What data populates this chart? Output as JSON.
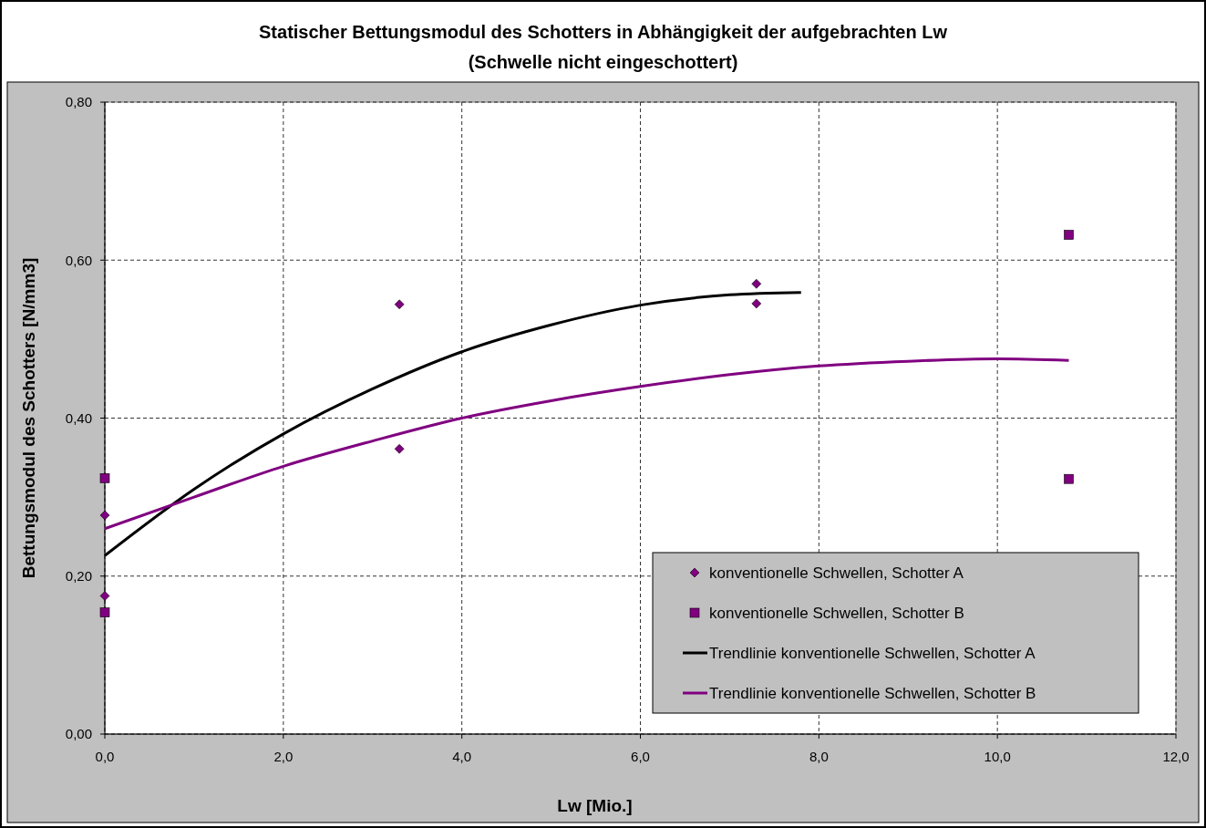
{
  "chart_data": {
    "type": "scatter",
    "title": "Statischer Bettungsmodul des Schotters in Abhängigkeit der aufgebrachten Lw",
    "subtitle": "(Schwelle nicht eingeschottert)",
    "xlabel": "Lw  [Mio.]",
    "ylabel": "Bettungsmodul des Schotters [N/mm3]",
    "xlim": [
      0,
      12
    ],
    "xticks": [
      {
        "value": 0,
        "label": "0,0"
      },
      {
        "value": 2,
        "label": "2,0"
      },
      {
        "value": 4,
        "label": "4,0"
      },
      {
        "value": 6,
        "label": "6,0"
      },
      {
        "value": 8,
        "label": "8,0"
      },
      {
        "value": 10,
        "label": "10,0"
      },
      {
        "value": 12,
        "label": "12,0"
      }
    ],
    "ylim": [
      0,
      0.8
    ],
    "yticks": [
      {
        "value": 0,
        "label": "0,00"
      },
      {
        "value": 0.2,
        "label": "0,20"
      },
      {
        "value": 0.4,
        "label": "0,40"
      },
      {
        "value": 0.6,
        "label": "0,60"
      },
      {
        "value": 0.8,
        "label": "0,80"
      }
    ],
    "grid": true,
    "legend": "bottom right",
    "series": [
      {
        "name": "konventionelle Schwellen, Schotter A",
        "marker": "diamond",
        "color": "#800080",
        "x": [
          0,
          0,
          3.3,
          3.3,
          7.3,
          7.3
        ],
        "values": [
          0.277,
          0.175,
          0.544,
          0.361,
          0.57,
          0.545
        ]
      },
      {
        "name": "konventionelle Schwellen, Schotter B",
        "marker": "square",
        "color": "#800080",
        "x": [
          0,
          0,
          10.8,
          10.8
        ],
        "values": [
          0.324,
          0.154,
          0.632,
          0.323
        ]
      },
      {
        "name": "Trendlinie konventionelle Schwellen, Schotter A",
        "type": "line",
        "marker": "none",
        "color": "#000000",
        "x": [
          0,
          1,
          2,
          3,
          4,
          5,
          6,
          7,
          7.8
        ],
        "values": [
          0.226,
          0.31,
          0.38,
          0.437,
          0.484,
          0.518,
          0.543,
          0.556,
          0.559
        ]
      },
      {
        "name": "Trendlinie konventionelle Schwellen, Schotter B",
        "type": "line",
        "marker": "none",
        "color": "#800080",
        "x": [
          0,
          1,
          2,
          3,
          4,
          5,
          6,
          7,
          8,
          9,
          10,
          10.8
        ],
        "values": [
          0.26,
          0.3,
          0.339,
          0.371,
          0.4,
          0.422,
          0.44,
          0.455,
          0.466,
          0.472,
          0.475,
          0.473
        ]
      }
    ]
  }
}
